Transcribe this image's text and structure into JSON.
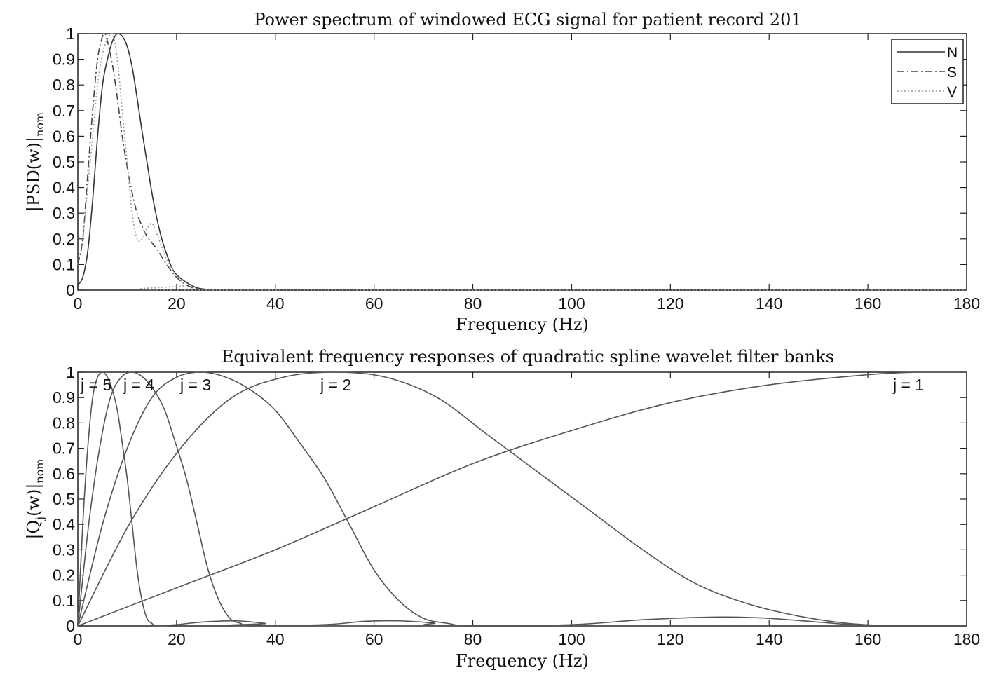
{
  "chart_data": [
    {
      "type": "line",
      "title": "Power spectrum of windowed ECG signal for patient record 201",
      "xlabel": "Frequency (Hz)",
      "ylabel": "|PSD(w)|",
      "ylabel_sub": "nom",
      "xlim": [
        0,
        180
      ],
      "ylim": [
        0,
        1
      ],
      "xticks": [
        "0",
        "20",
        "40",
        "60",
        "80",
        "100",
        "120",
        "140",
        "160",
        "180"
      ],
      "yticks": [
        "0",
        "0.1",
        "0.2",
        "0.3",
        "0.4",
        "0.5",
        "0.6",
        "0.7",
        "0.8",
        "0.9",
        "1"
      ],
      "legend_position": "top-right",
      "series": [
        {
          "name": "N",
          "style": "solid",
          "color": "#333333",
          "points": [
            [
              0,
              0.02
            ],
            [
              1,
              0.05
            ],
            [
              2,
              0.15
            ],
            [
              3,
              0.35
            ],
            [
              4,
              0.6
            ],
            [
              5,
              0.8
            ],
            [
              6,
              0.9
            ],
            [
              7,
              0.97
            ],
            [
              8,
              1.0
            ],
            [
              9,
              0.99
            ],
            [
              10,
              0.95
            ],
            [
              11,
              0.87
            ],
            [
              12,
              0.75
            ],
            [
              13,
              0.62
            ],
            [
              14,
              0.5
            ],
            [
              15,
              0.38
            ],
            [
              16,
              0.28
            ],
            [
              17,
              0.2
            ],
            [
              18,
              0.14
            ],
            [
              19,
              0.09
            ],
            [
              20,
              0.06
            ],
            [
              22,
              0.03
            ],
            [
              24,
              0.01
            ],
            [
              26,
              0.003
            ],
            [
              28,
              0
            ],
            [
              180,
              0
            ]
          ]
        },
        {
          "name": "S",
          "style": "dashdot",
          "color": "#444444",
          "points": [
            [
              0,
              0.1
            ],
            [
              1,
              0.2
            ],
            [
              2,
              0.45
            ],
            [
              3,
              0.7
            ],
            [
              4,
              0.9
            ],
            [
              5,
              0.99
            ],
            [
              5.5,
              1.0
            ],
            [
              6,
              0.97
            ],
            [
              7,
              0.88
            ],
            [
              8,
              0.75
            ],
            [
              9,
              0.6
            ],
            [
              10,
              0.48
            ],
            [
              11,
              0.38
            ],
            [
              12,
              0.3
            ],
            [
              13,
              0.25
            ],
            [
              14,
              0.21
            ],
            [
              16,
              0.16
            ],
            [
              18,
              0.1
            ],
            [
              20,
              0.05
            ],
            [
              22,
              0.02
            ],
            [
              24,
              0.005
            ],
            [
              26,
              0
            ],
            [
              180,
              0
            ]
          ]
        },
        {
          "name": "V",
          "style": "dotted",
          "color": "#999999",
          "points": [
            [
              0,
              0.1
            ],
            [
              1,
              0.2
            ],
            [
              2,
              0.4
            ],
            [
              3,
              0.6
            ],
            [
              4,
              0.8
            ],
            [
              5,
              0.92
            ],
            [
              6,
              0.98
            ],
            [
              7,
              1.0
            ],
            [
              8,
              0.9
            ],
            [
              9,
              0.7
            ],
            [
              10,
              0.5
            ],
            [
              11,
              0.3
            ],
            [
              12,
              0.2
            ],
            [
              13,
              0.2
            ],
            [
              14,
              0.24
            ],
            [
              15,
              0.26
            ],
            [
              16,
              0.22
            ],
            [
              18,
              0.12
            ],
            [
              20,
              0.06
            ],
            [
              22,
              0.02
            ],
            [
              25,
              0
            ],
            [
              180,
              0
            ]
          ]
        }
      ]
    },
    {
      "type": "line",
      "title": "Equivalent frequency responses of quadratic spline wavelet filter banks",
      "xlabel": "Frequency (Hz)",
      "ylabel": "|Q",
      "ylabel_j": "j",
      "ylabel_rest": "(w)|",
      "ylabel_sub": "nom",
      "xlim": [
        0,
        180
      ],
      "ylim": [
        0,
        1
      ],
      "xticks": [
        "0",
        "20",
        "40",
        "60",
        "80",
        "100",
        "120",
        "140",
        "160",
        "180"
      ],
      "yticks": [
        "0",
        "0.1",
        "0.2",
        "0.3",
        "0.4",
        "0.5",
        "0.6",
        "0.7",
        "0.8",
        "0.9",
        "1"
      ],
      "series": [
        {
          "name": "j = 5",
          "color": "#555555",
          "points": [
            [
              0,
              0
            ],
            [
              1,
              0.4
            ],
            [
              2,
              0.7
            ],
            [
              3,
              0.9
            ],
            [
              4,
              0.98
            ],
            [
              5,
              1.0
            ],
            [
              6,
              0.98
            ],
            [
              7,
              0.93
            ],
            [
              8,
              0.85
            ],
            [
              9,
              0.72
            ],
            [
              10,
              0.58
            ],
            [
              11,
              0.4
            ],
            [
              12,
              0.22
            ],
            [
              13,
              0.1
            ],
            [
              14,
              0.03
            ],
            [
              15,
              0.01
            ],
            [
              16,
              0
            ],
            [
              20,
              0.005
            ],
            [
              25,
              0.015
            ],
            [
              32,
              0.02
            ],
            [
              38,
              0.01
            ],
            [
              42,
              0
            ],
            [
              180,
              0
            ]
          ]
        },
        {
          "name": "j = 4",
          "color": "#555555",
          "points": [
            [
              0,
              0
            ],
            [
              2.2,
              0.4
            ],
            [
              4.4,
              0.7
            ],
            [
              6.6,
              0.9
            ],
            [
              8.8,
              0.98
            ],
            [
              11,
              1.0
            ],
            [
              13.2,
              0.98
            ],
            [
              15.4,
              0.93
            ],
            [
              17.6,
              0.85
            ],
            [
              19.8,
              0.72
            ],
            [
              22,
              0.58
            ],
            [
              24.2,
              0.4
            ],
            [
              26.4,
              0.22
            ],
            [
              28.6,
              0.1
            ],
            [
              30.8,
              0.03
            ],
            [
              33,
              0.01
            ],
            [
              35.2,
              0
            ],
            [
              50,
              0.005
            ],
            [
              58,
              0.018
            ],
            [
              65,
              0.02
            ],
            [
              72,
              0.012
            ],
            [
              80,
              0
            ],
            [
              180,
              0
            ]
          ]
        },
        {
          "name": "j = 3",
          "color": "#555555",
          "points": [
            [
              0,
              0
            ],
            [
              5,
              0.4
            ],
            [
              10,
              0.7
            ],
            [
              15,
              0.9
            ],
            [
              20,
              0.98
            ],
            [
              25,
              1.0
            ],
            [
              30,
              0.98
            ],
            [
              35,
              0.93
            ],
            [
              40,
              0.85
            ],
            [
              45,
              0.72
            ],
            [
              50,
              0.58
            ],
            [
              55,
              0.4
            ],
            [
              60,
              0.22
            ],
            [
              65,
              0.1
            ],
            [
              70,
              0.03
            ],
            [
              75,
              0.01
            ],
            [
              80,
              0
            ],
            [
              100,
              0.005
            ],
            [
              115,
              0.025
            ],
            [
              130,
              0.035
            ],
            [
              140,
              0.03
            ],
            [
              150,
              0.015
            ],
            [
              162,
              0
            ],
            [
              180,
              0
            ]
          ]
        },
        {
          "name": "j = 2",
          "color": "#555555",
          "points": [
            [
              0,
              0
            ],
            [
              10.4,
              0.4
            ],
            [
              20.8,
              0.7
            ],
            [
              31.2,
              0.9
            ],
            [
              41.6,
              0.98
            ],
            [
              52,
              1.0
            ],
            [
              62.4,
              0.98
            ],
            [
              72.8,
              0.9
            ],
            [
              83.2,
              0.75
            ],
            [
              93.6,
              0.6
            ],
            [
              104,
              0.45
            ],
            [
              114.4,
              0.3
            ],
            [
              124.8,
              0.17
            ],
            [
              135.2,
              0.09
            ],
            [
              145.6,
              0.04
            ],
            [
              156,
              0.01
            ],
            [
              166.4,
              0
            ],
            [
              180,
              0
            ]
          ]
        },
        {
          "name": "j = 1",
          "color": "#555555",
          "points": [
            [
              0,
              0
            ],
            [
              20,
              0.15
            ],
            [
              40,
              0.3
            ],
            [
              60,
              0.47
            ],
            [
              80,
              0.64
            ],
            [
              100,
              0.77
            ],
            [
              120,
              0.88
            ],
            [
              140,
              0.95
            ],
            [
              160,
              0.99
            ],
            [
              170,
              1.0
            ],
            [
              180,
              1.0
            ]
          ]
        }
      ]
    }
  ]
}
